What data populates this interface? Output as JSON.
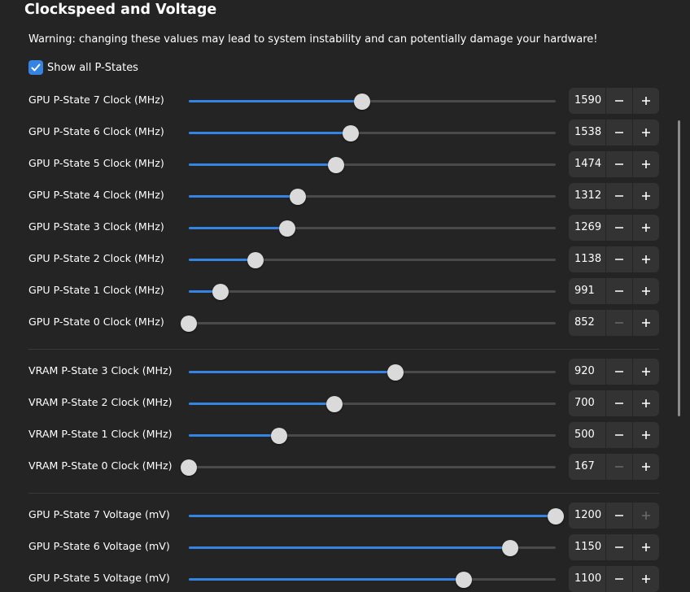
{
  "title": "Clockspeed and Voltage",
  "warning": "Warning: changing these values may lead to system instability and can potentially damage your hardware!",
  "show_all": {
    "label": "Show all P-States",
    "checked": true
  },
  "colors": {
    "accent": "#3584e4",
    "background": "#242424",
    "spin_bg": "#333333"
  },
  "rows": [
    {
      "label": "GPU P-State 7 Clock (MHz)",
      "value": "1590",
      "level": 0.473,
      "minus_enabled": true,
      "plus_enabled": true
    },
    {
      "label": "GPU P-State 6 Clock (MHz)",
      "value": "1538",
      "level": 0.441,
      "minus_enabled": true,
      "plus_enabled": true
    },
    {
      "label": "GPU P-State 5 Clock (MHz)",
      "value": "1474",
      "level": 0.401,
      "minus_enabled": true,
      "plus_enabled": true
    },
    {
      "label": "GPU P-State 4 Clock (MHz)",
      "value": "1312",
      "level": 0.297,
      "minus_enabled": true,
      "plus_enabled": true
    },
    {
      "label": "GPU P-State 3 Clock (MHz)",
      "value": "1269",
      "level": 0.268,
      "minus_enabled": true,
      "plus_enabled": true
    },
    {
      "label": "GPU P-State 2 Clock (MHz)",
      "value": "1138",
      "level": 0.182,
      "minus_enabled": true,
      "plus_enabled": true
    },
    {
      "label": "GPU P-State 1 Clock (MHz)",
      "value": "991",
      "level": 0.086,
      "minus_enabled": true,
      "plus_enabled": true
    },
    {
      "label": "GPU P-State 0 Clock (MHz)",
      "value": "852",
      "level": 0.0,
      "minus_enabled": false,
      "plus_enabled": true
    },
    {
      "label": "VRAM P-State 3 Clock (MHz)",
      "value": "920",
      "level": 0.563,
      "minus_enabled": true,
      "plus_enabled": true
    },
    {
      "label": "VRAM P-State 2 Clock (MHz)",
      "value": "700",
      "level": 0.397,
      "minus_enabled": true,
      "plus_enabled": true
    },
    {
      "label": "VRAM P-State 1 Clock (MHz)",
      "value": "500",
      "level": 0.246,
      "minus_enabled": true,
      "plus_enabled": true
    },
    {
      "label": "VRAM P-State 0 Clock (MHz)",
      "value": "167",
      "level": 0.0,
      "minus_enabled": false,
      "plus_enabled": true
    },
    {
      "label": "GPU P-State 7 Voltage (mV)",
      "value": "1200",
      "level": 1.0,
      "minus_enabled": true,
      "plus_enabled": false
    },
    {
      "label": "GPU P-State 6 Voltage (mV)",
      "value": "1150",
      "level": 0.875,
      "minus_enabled": true,
      "plus_enabled": true
    },
    {
      "label": "GPU P-State 5 Voltage (mV)",
      "value": "1100",
      "level": 0.75,
      "minus_enabled": true,
      "plus_enabled": true
    }
  ]
}
